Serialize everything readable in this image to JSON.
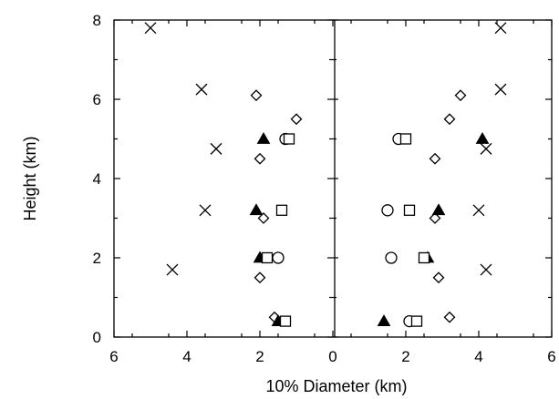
{
  "chart_data": {
    "type": "scatter",
    "xlabel": "10% Diameter (km)",
    "ylabel": "Height (km)",
    "x_ticks": [
      "6",
      "4",
      "2",
      "0",
      "2",
      "4",
      "6"
    ],
    "y_ticks": [
      "0",
      "2",
      "4",
      "6",
      "8"
    ],
    "ylim": [
      0,
      8
    ],
    "panels": [
      {
        "side": "left",
        "xlim": [
          6,
          0
        ],
        "series": [
          {
            "marker": "cross",
            "points": [
              [
                5.0,
                7.8
              ],
              [
                3.6,
                6.25
              ],
              [
                3.2,
                4.75
              ],
              [
                3.5,
                3.2
              ],
              [
                4.4,
                1.7
              ]
            ]
          },
          {
            "marker": "diamond",
            "points": [
              [
                2.1,
                6.1
              ],
              [
                1.0,
                5.5
              ],
              [
                2.0,
                4.5
              ],
              [
                1.9,
                3.0
              ],
              [
                2.0,
                1.5
              ],
              [
                1.6,
                0.5
              ]
            ]
          },
          {
            "marker": "triangle-filled",
            "points": [
              [
                1.9,
                5.0
              ],
              [
                2.1,
                3.2
              ],
              [
                2.0,
                2.0
              ],
              [
                1.5,
                0.4
              ]
            ]
          },
          {
            "marker": "circle",
            "points": [
              [
                1.3,
                5.0
              ],
              [
                1.5,
                2.0
              ]
            ]
          },
          {
            "marker": "square",
            "points": [
              [
                1.2,
                5.0
              ],
              [
                1.4,
                3.2
              ],
              [
                1.8,
                2.0
              ],
              [
                1.3,
                0.4
              ]
            ]
          }
        ]
      },
      {
        "side": "right",
        "xlim": [
          0,
          6
        ],
        "series": [
          {
            "marker": "cross",
            "points": [
              [
                4.6,
                7.8
              ],
              [
                4.6,
                6.25
              ],
              [
                4.2,
                4.75
              ],
              [
                4.0,
                3.2
              ],
              [
                4.2,
                1.7
              ]
            ]
          },
          {
            "marker": "diamond",
            "points": [
              [
                3.5,
                6.1
              ],
              [
                3.2,
                5.5
              ],
              [
                2.8,
                4.5
              ],
              [
                2.8,
                3.0
              ],
              [
                2.9,
                1.5
              ],
              [
                3.2,
                0.5
              ]
            ]
          },
          {
            "marker": "triangle-filled",
            "points": [
              [
                4.1,
                5.0
              ],
              [
                2.9,
                3.2
              ],
              [
                2.6,
                2.0
              ],
              [
                1.4,
                0.4
              ]
            ]
          },
          {
            "marker": "circle",
            "points": [
              [
                1.8,
                5.0
              ],
              [
                1.5,
                3.2
              ],
              [
                1.6,
                2.0
              ],
              [
                2.1,
                0.4
              ]
            ]
          },
          {
            "marker": "square",
            "points": [
              [
                2.0,
                5.0
              ],
              [
                2.1,
                3.2
              ],
              [
                2.5,
                2.0
              ],
              [
                2.3,
                0.4
              ]
            ]
          }
        ]
      }
    ],
    "grid": false,
    "legend": "none"
  }
}
